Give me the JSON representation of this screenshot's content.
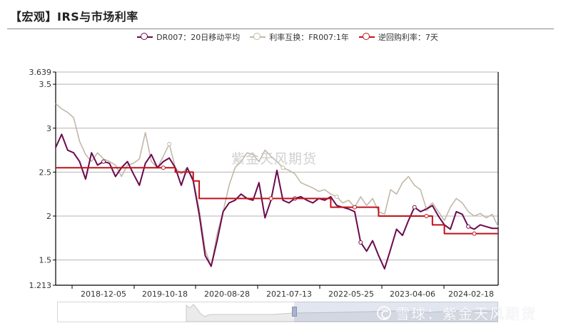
{
  "header": {
    "title": "【宏观】IRS与市场利率"
  },
  "legend": [
    {
      "label": "DR007：20日移动平均",
      "color": "#6b0a4e"
    },
    {
      "label": "利率互换：FR007:1年",
      "color": "#c2b8a8"
    },
    {
      "label": "逆回购利率：7天",
      "color": "#c0121a"
    }
  ],
  "watermarks": {
    "center": "紫金天风期货",
    "corner": "雪球：紫金天风期货"
  },
  "axis": {
    "y_ticks": [
      "3.639",
      "3.5",
      "3",
      "2.5",
      "2",
      "1.5",
      "1.213"
    ],
    "x_ticks": [
      "2018-12-05",
      "2019-10-18",
      "2020-08-28",
      "2021-07-13",
      "2022-05-25",
      "2023-04-06",
      "2024-02-18"
    ]
  },
  "chart_data": {
    "type": "line",
    "title": "【宏观】IRS与市场利率",
    "xlabel": "",
    "ylabel": "",
    "ylim": [
      1.213,
      3.639
    ],
    "grid": true,
    "legend_position": "top",
    "x_tick_labels": [
      "2018-12-05",
      "2019-10-18",
      "2020-08-28",
      "2021-07-13",
      "2022-05-25",
      "2023-04-06",
      "2024-02-18"
    ],
    "x": [
      "2018-03",
      "2018-04",
      "2018-05",
      "2018-06",
      "2018-07",
      "2018-08",
      "2018-09",
      "2018-10",
      "2018-11",
      "2018-12",
      "2019-01",
      "2019-02",
      "2019-03",
      "2019-04",
      "2019-05",
      "2019-06",
      "2019-07",
      "2019-08",
      "2019-09",
      "2019-10",
      "2019-11",
      "2019-12",
      "2020-01",
      "2020-02",
      "2020-03",
      "2020-04",
      "2020-05",
      "2020-06",
      "2020-07",
      "2020-08",
      "2020-09",
      "2020-10",
      "2020-11",
      "2020-12",
      "2021-01",
      "2021-02",
      "2021-03",
      "2021-04",
      "2021-05",
      "2021-06",
      "2021-07",
      "2021-08",
      "2021-09",
      "2021-10",
      "2021-11",
      "2021-12",
      "2022-01",
      "2022-02",
      "2022-03",
      "2022-04",
      "2022-05",
      "2022-06",
      "2022-07",
      "2022-08",
      "2022-09",
      "2022-10",
      "2022-11",
      "2022-12",
      "2023-01",
      "2023-02",
      "2023-03",
      "2023-04",
      "2023-05",
      "2023-06",
      "2023-07",
      "2023-08",
      "2023-09",
      "2023-10",
      "2023-11",
      "2023-12",
      "2024-01",
      "2024-02",
      "2024-03",
      "2024-04",
      "2024-05"
    ],
    "series": [
      {
        "name": "DR007：20日移动平均",
        "color": "#6b0a4e",
        "values": [
          2.78,
          2.93,
          2.75,
          2.72,
          2.62,
          2.42,
          2.72,
          2.58,
          2.62,
          2.6,
          2.45,
          2.55,
          2.62,
          2.48,
          2.35,
          2.6,
          2.7,
          2.55,
          2.62,
          2.66,
          2.55,
          2.35,
          2.55,
          2.4,
          2.02,
          1.55,
          1.43,
          1.72,
          2.05,
          2.15,
          2.18,
          2.25,
          2.2,
          2.18,
          2.38,
          1.98,
          2.18,
          2.52,
          2.18,
          2.15,
          2.2,
          2.22,
          2.18,
          2.15,
          2.2,
          2.18,
          2.22,
          2.12,
          2.1,
          2.08,
          2.05,
          1.7,
          1.6,
          1.72,
          1.55,
          1.4,
          1.62,
          1.85,
          1.78,
          1.95,
          2.1,
          2.05,
          2.08,
          2.12,
          2.0,
          1.9,
          1.85,
          2.05,
          2.02,
          1.88,
          1.85,
          1.9,
          1.88,
          1.86,
          1.86
        ]
      },
      {
        "name": "利率互换：FR007:1年",
        "color": "#c2b8a8",
        "values": [
          3.28,
          3.22,
          3.18,
          3.12,
          2.85,
          2.7,
          2.62,
          2.72,
          2.65,
          2.62,
          2.58,
          2.45,
          2.58,
          2.6,
          2.65,
          2.95,
          2.62,
          2.55,
          2.68,
          2.82,
          2.55,
          2.48,
          2.55,
          2.42,
          2.08,
          1.62,
          1.42,
          1.8,
          2.05,
          2.35,
          2.55,
          2.62,
          2.72,
          2.7,
          2.62,
          2.75,
          2.68,
          2.62,
          2.55,
          2.52,
          2.48,
          2.38,
          2.35,
          2.32,
          2.28,
          2.3,
          2.25,
          2.22,
          2.15,
          2.18,
          2.1,
          2.22,
          2.12,
          2.2,
          2.05,
          2.02,
          2.3,
          2.25,
          2.38,
          2.45,
          2.35,
          2.3,
          2.08,
          2.15,
          2.05,
          1.95,
          2.1,
          2.2,
          2.15,
          2.05,
          2.0,
          2.03,
          1.98,
          2.02,
          1.88
        ]
      },
      {
        "name": "逆回购利率：7天",
        "color": "#c0121a",
        "values": [
          2.55,
          2.55,
          2.55,
          2.55,
          2.55,
          2.55,
          2.55,
          2.55,
          2.55,
          2.55,
          2.55,
          2.55,
          2.55,
          2.55,
          2.55,
          2.55,
          2.55,
          2.55,
          2.55,
          2.55,
          2.5,
          2.5,
          2.5,
          2.4,
          2.2,
          2.2,
          2.2,
          2.2,
          2.2,
          2.2,
          2.2,
          2.2,
          2.2,
          2.2,
          2.2,
          2.2,
          2.2,
          2.2,
          2.2,
          2.2,
          2.2,
          2.2,
          2.2,
          2.2,
          2.2,
          2.2,
          2.1,
          2.1,
          2.1,
          2.1,
          2.1,
          2.1,
          2.1,
          2.1,
          2.0,
          2.0,
          2.0,
          2.0,
          2.0,
          2.0,
          2.0,
          2.0,
          2.0,
          1.9,
          1.9,
          1.8,
          1.8,
          1.8,
          1.8,
          1.8,
          1.8,
          1.8,
          1.8,
          1.8,
          1.8
        ]
      }
    ]
  }
}
